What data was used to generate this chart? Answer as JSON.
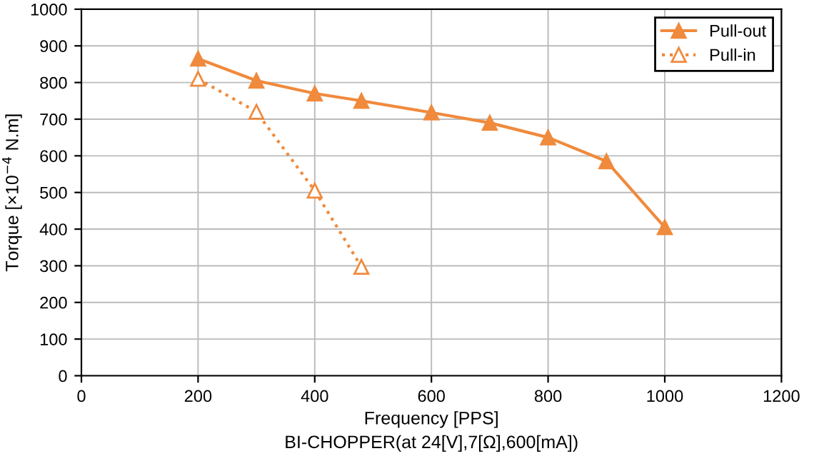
{
  "chart_data": {
    "type": "line",
    "xlabel": "Frequency [PPS]",
    "ylabel": "Torque [×10$^{−4}$ N.m]",
    "annotations": [
      "BI-CHOPPER(at 24[V],7[Ω],600[mA])"
    ],
    "series": [
      {
        "name": "Pull-out",
        "color": "#f08a3c",
        "marker": "triangle",
        "line_style": "solid",
        "x": [
          200,
          300,
          400,
          480,
          600,
          700,
          800,
          900,
          1000
        ],
        "values": [
          865,
          805,
          770,
          750,
          718,
          690,
          650,
          585,
          405
        ]
      },
      {
        "name": "Pull-in",
        "color": "#f08a3c",
        "marker": "triangle",
        "line_style": "dotted",
        "x": [
          200,
          300,
          400,
          480
        ],
        "values": [
          810,
          720,
          505,
          297
        ]
      }
    ],
    "xlim": [
      0,
      1200
    ],
    "xticks": [
      0,
      200,
      400,
      600,
      800,
      1000,
      1200
    ],
    "ylim": [
      0,
      1000
    ],
    "yticks": [
      0,
      100,
      200,
      300,
      400,
      500,
      600,
      700,
      800,
      900,
      1000
    ],
    "grid": true,
    "legend": "top right"
  }
}
